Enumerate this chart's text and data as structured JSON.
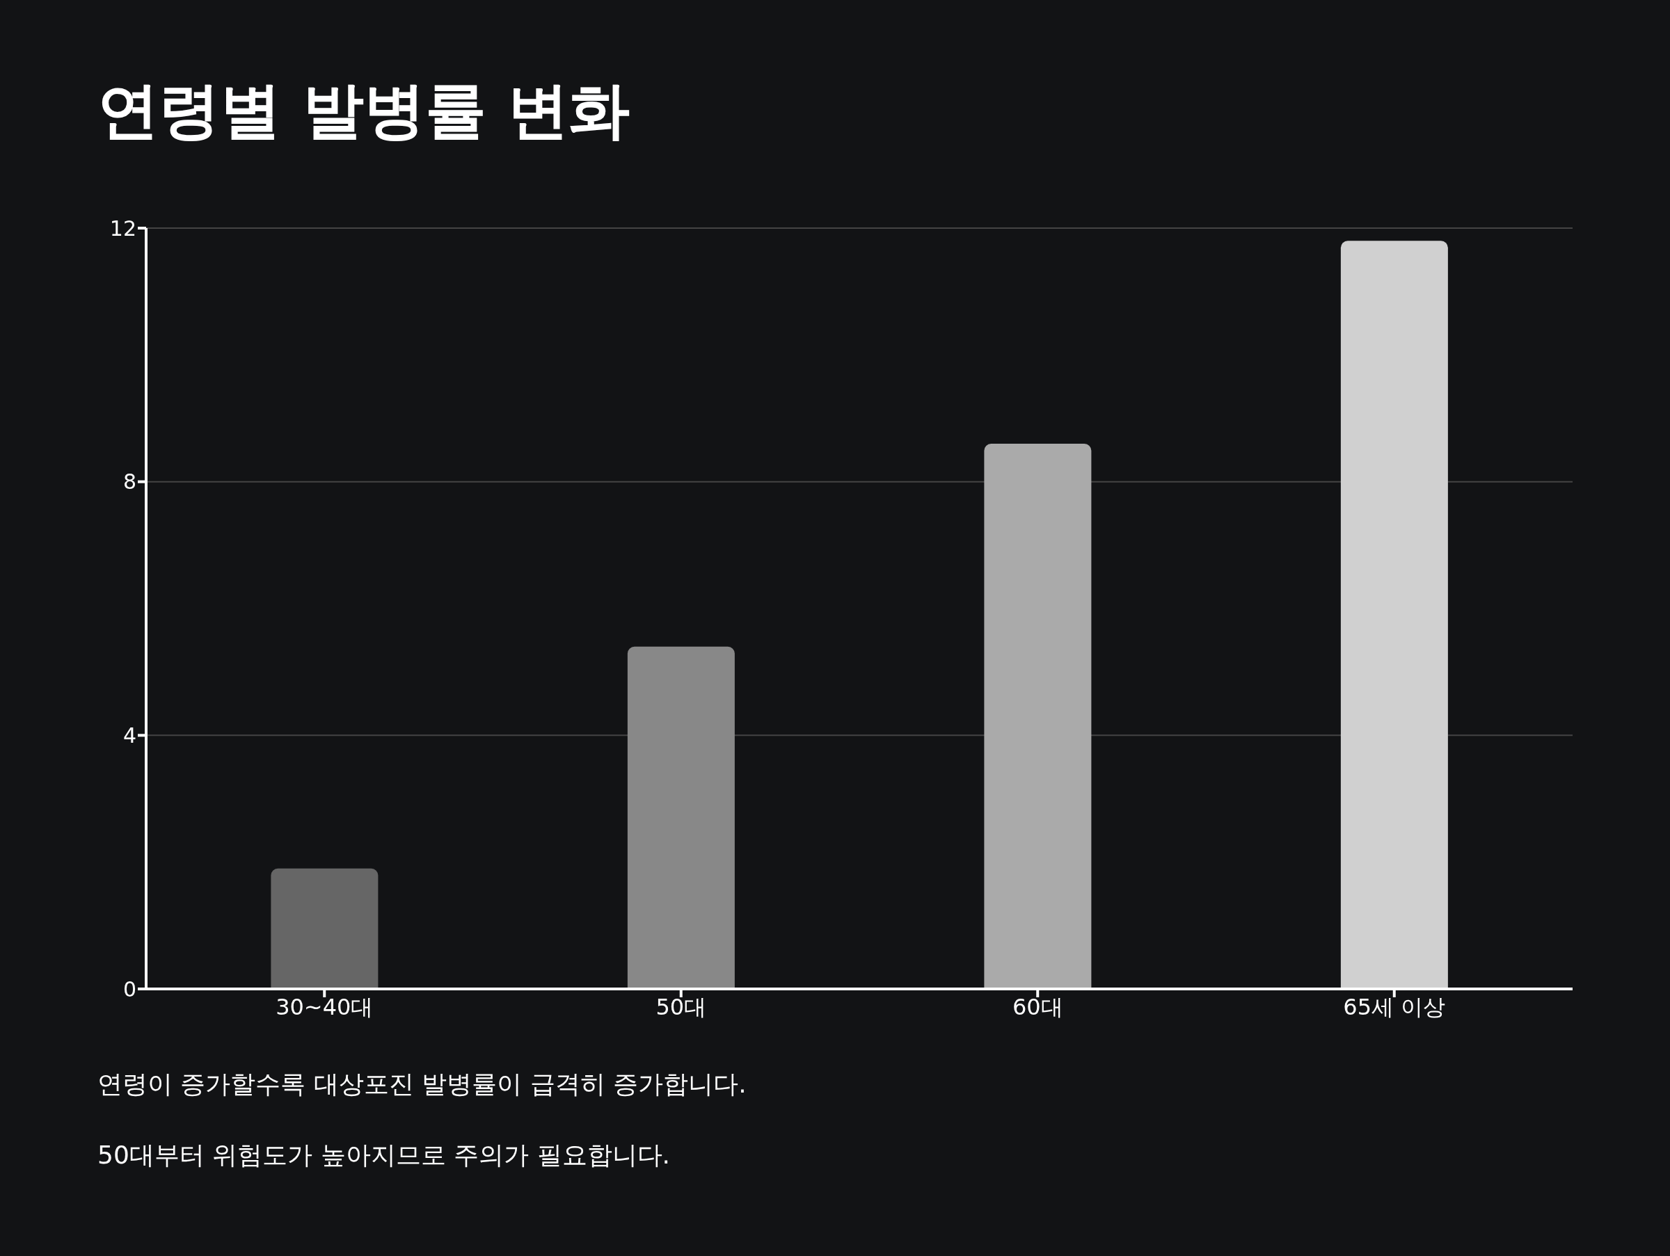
{
  "chart_data": {
    "type": "bar",
    "title": "연령별 발병률 변화",
    "categories": [
      "30~40대",
      "50대",
      "60대",
      "65세 이상"
    ],
    "values": [
      1.9,
      5.4,
      8.6,
      11.8
    ],
    "colors": [
      "#666666",
      "#888888",
      "#aaaaaa",
      "#d0d0d0"
    ],
    "ylim": [
      0,
      12
    ],
    "yticks": [
      0,
      4,
      8,
      12
    ],
    "grid": "y",
    "annotations": [
      "연령이 증가할수록 대상포진 발병률이 급격히 증가합니다.",
      "50대부터 위험도가 높아지므로 주의가 필요합니다."
    ]
  }
}
